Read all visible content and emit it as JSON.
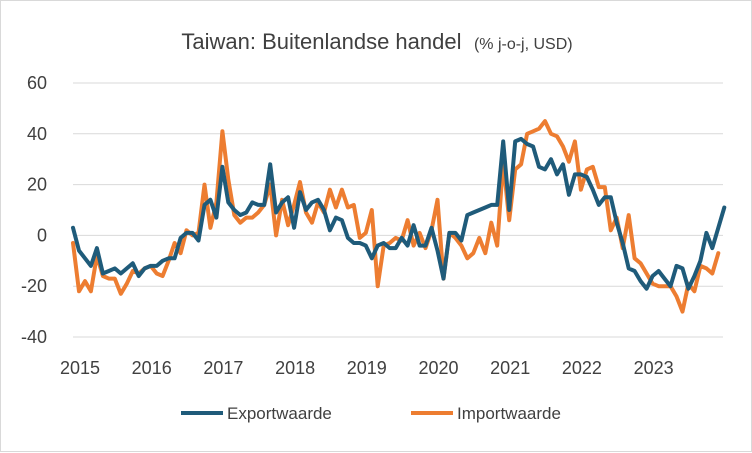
{
  "chart_data": {
    "type": "line",
    "title": "Taiwan: Buitenlandse handel",
    "subtitle": "(% j-o-j, USD)",
    "xlabel": "",
    "ylabel": "",
    "x_start": "2015-01",
    "x_end": "2023-12",
    "x_ticks": [
      "2015",
      "2016",
      "2017",
      "2018",
      "2019",
      "2020",
      "2021",
      "2022",
      "2023"
    ],
    "y_ticks": [
      "60",
      "40",
      "20",
      "0",
      "-20",
      "-40"
    ],
    "ylim": [
      -40,
      60
    ],
    "grid": "horizontal",
    "legend": "bottom",
    "colors": {
      "export": "#1f5b7a",
      "import": "#ed7d31",
      "grid": "#d9d9d9",
      "text": "#404040"
    },
    "series": [
      {
        "name": "Exportwaarde",
        "values": [
          3,
          -6,
          -9,
          -12,
          -5,
          -15,
          -14,
          -13,
          -15,
          -13,
          -11,
          -16,
          -13,
          -12,
          -12,
          -10,
          -9,
          -9,
          -1,
          1,
          1,
          -2,
          12,
          14,
          7,
          27,
          13,
          10,
          8,
          9,
          13,
          12,
          12,
          28,
          9,
          13,
          15,
          3,
          17,
          10,
          13,
          14,
          10,
          2,
          7,
          6,
          -1,
          -3,
          -3,
          -4,
          -9,
          -4,
          -3,
          -5,
          -5,
          -1,
          -4,
          4,
          -4,
          -4,
          3,
          -6,
          -17,
          1,
          1,
          -2,
          8,
          9,
          10,
          11,
          12,
          12,
          37,
          10,
          37,
          38,
          36,
          35,
          27,
          26,
          30,
          24,
          28,
          16,
          24,
          24,
          23,
          18,
          12,
          15,
          15,
          5,
          -3,
          -13,
          -14,
          -18,
          -21,
          -16,
          -14,
          -17,
          -20,
          -12,
          -13,
          -21,
          -16,
          -10,
          1,
          -5,
          3,
          11
        ]
      },
      {
        "name": "Importwaarde",
        "values": [
          -3,
          -22,
          -18,
          -22,
          -8,
          -16,
          -17,
          -17,
          -23,
          -19,
          -14,
          -15,
          -13,
          -12,
          -15,
          -16,
          -10,
          -3,
          -7,
          2,
          0,
          1,
          20,
          3,
          13,
          41,
          22,
          8,
          5,
          7,
          7,
          9,
          12,
          20,
          0,
          14,
          4,
          12,
          21,
          9,
          5,
          13,
          9,
          18,
          11,
          18,
          11,
          12,
          -1,
          1,
          10,
          -20,
          -4,
          -3,
          -1,
          -2,
          6,
          -4,
          1,
          -5,
          2,
          14,
          -17,
          1,
          -1,
          -4,
          -9,
          -7,
          -1,
          -7,
          5,
          -4,
          29,
          6,
          26,
          28,
          40,
          41,
          42,
          45,
          40,
          39,
          35,
          29,
          37,
          18,
          26,
          27,
          19,
          19,
          2,
          7,
          -5,
          8,
          -9,
          -11,
          -15,
          -19,
          -20,
          -20,
          -20,
          -24,
          -30,
          -19,
          -22,
          -12,
          -13,
          -15,
          -7
        ]
      }
    ]
  }
}
